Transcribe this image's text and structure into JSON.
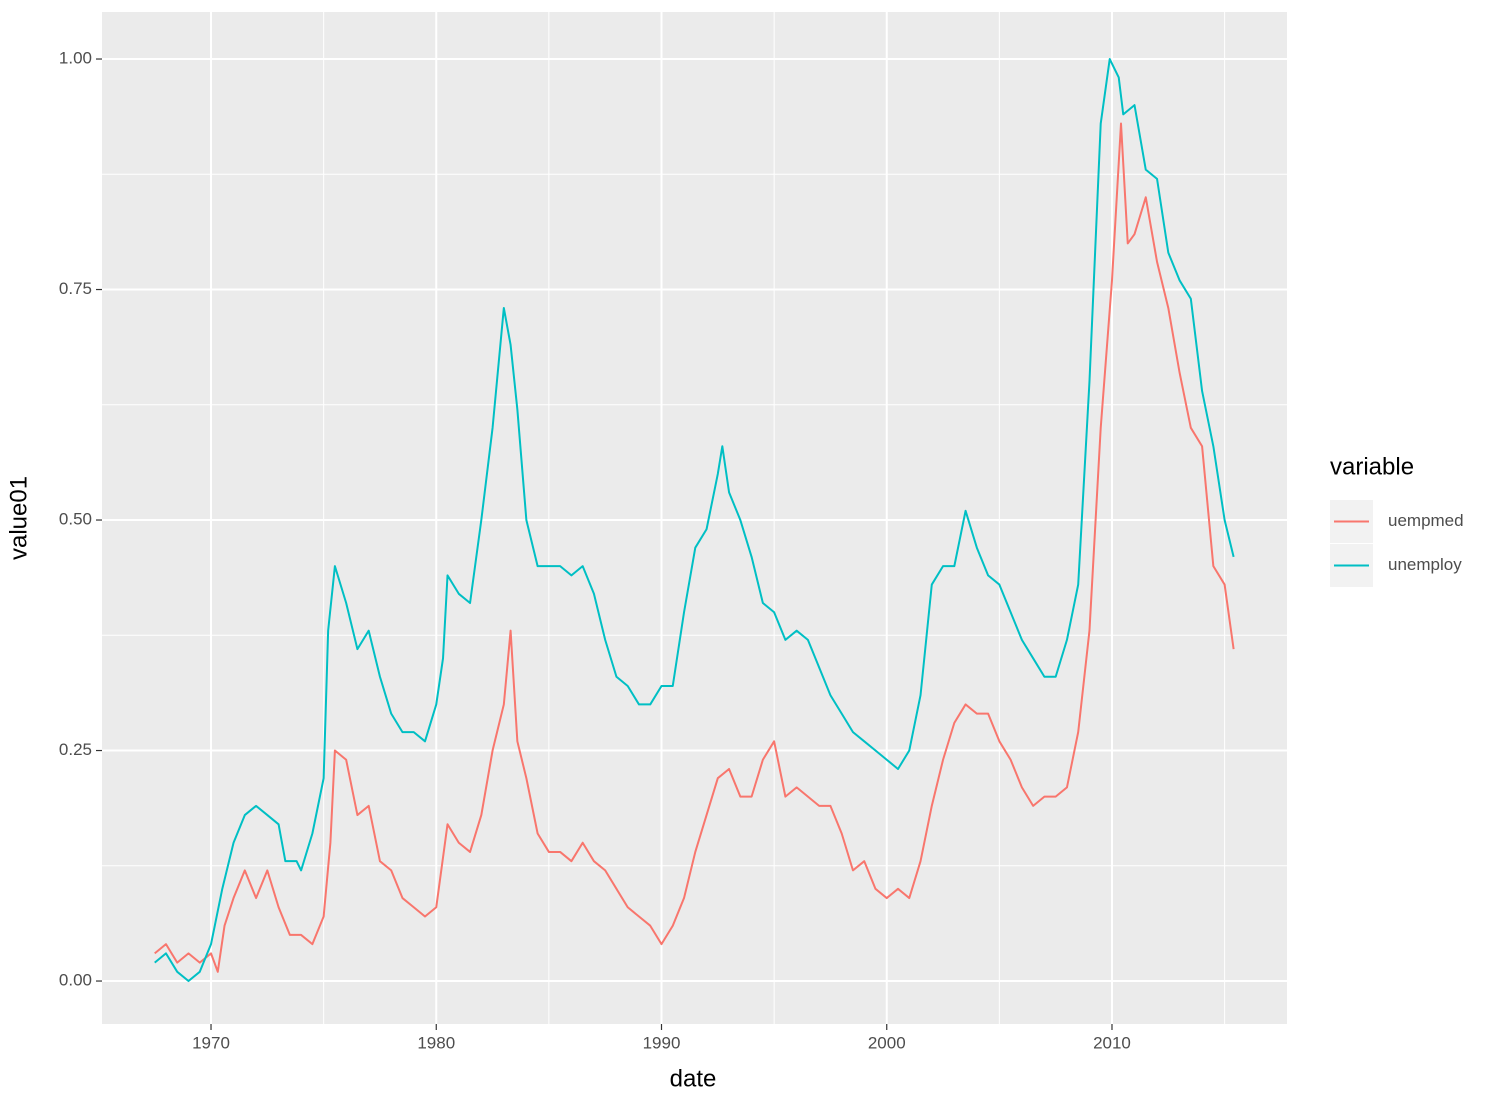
{
  "chart_data": {
    "type": "line",
    "x_label": "date",
    "y_label": "value01",
    "legend_title": "variable",
    "xlim": [
      1965.16,
      2017.77
    ],
    "xticks": [
      1970,
      1980,
      1990,
      2000,
      2010
    ],
    "ylim": [
      -0.0466,
      1.051
    ],
    "yticks": [
      {
        "value": 0,
        "label": "0.00"
      },
      {
        "value": 0.25,
        "label": "0.25"
      },
      {
        "value": 0.5,
        "label": "0.50"
      },
      {
        "value": 0.75,
        "label": "0.75"
      },
      {
        "value": 1,
        "label": "1.00"
      }
    ],
    "grid": true,
    "legend_position": "right",
    "series": [
      {
        "name": "uempmed",
        "color": "#f8766d",
        "x": [
          1967.5,
          1968.0,
          1968.5,
          1969.0,
          1969.5,
          1970.0,
          1970.3,
          1970.6,
          1971.0,
          1971.5,
          1972.0,
          1972.5,
          1973.0,
          1973.5,
          1974.0,
          1974.5,
          1975.0,
          1975.3,
          1975.5,
          1976.0,
          1976.5,
          1977.0,
          1977.5,
          1978.0,
          1978.5,
          1979.0,
          1979.5,
          1980.0,
          1980.5,
          1981.0,
          1981.5,
          1982.0,
          1982.5,
          1983.0,
          1983.3,
          1983.6,
          1984.0,
          1984.5,
          1985.0,
          1985.5,
          1986.0,
          1986.5,
          1987.0,
          1987.5,
          1988.0,
          1988.5,
          1989.0,
          1989.5,
          1990.0,
          1990.5,
          1991.0,
          1991.5,
          1992.0,
          1992.5,
          1993.0,
          1993.5,
          1994.0,
          1994.5,
          1995.0,
          1995.5,
          1996.0,
          1996.5,
          1997.0,
          1997.5,
          1998.0,
          1998.5,
          1999.0,
          1999.5,
          2000.0,
          2000.5,
          2001.0,
          2001.5,
          2002.0,
          2002.5,
          2003.0,
          2003.5,
          2004.0,
          2004.5,
          2005.0,
          2005.5,
          2006.0,
          2006.5,
          2007.0,
          2007.5,
          2008.0,
          2008.5,
          2009.0,
          2009.5,
          2010.0,
          2010.4,
          2010.7,
          2011.0,
          2011.5,
          2012.0,
          2012.5,
          2013.0,
          2013.5,
          2014.0,
          2014.5,
          2015.0,
          2015.4
        ],
        "values": [
          0.03,
          0.04,
          0.02,
          0.03,
          0.02,
          0.03,
          0.01,
          0.06,
          0.09,
          0.12,
          0.09,
          0.12,
          0.08,
          0.05,
          0.05,
          0.04,
          0.07,
          0.15,
          0.25,
          0.24,
          0.18,
          0.19,
          0.13,
          0.12,
          0.09,
          0.08,
          0.07,
          0.08,
          0.17,
          0.15,
          0.14,
          0.18,
          0.25,
          0.3,
          0.38,
          0.26,
          0.22,
          0.16,
          0.14,
          0.14,
          0.13,
          0.15,
          0.13,
          0.12,
          0.1,
          0.08,
          0.07,
          0.06,
          0.04,
          0.06,
          0.09,
          0.14,
          0.18,
          0.22,
          0.23,
          0.2,
          0.2,
          0.24,
          0.26,
          0.2,
          0.21,
          0.2,
          0.19,
          0.19,
          0.16,
          0.12,
          0.13,
          0.1,
          0.09,
          0.1,
          0.09,
          0.13,
          0.19,
          0.24,
          0.28,
          0.3,
          0.29,
          0.29,
          0.26,
          0.24,
          0.21,
          0.19,
          0.2,
          0.2,
          0.21,
          0.27,
          0.38,
          0.6,
          0.76,
          0.93,
          0.8,
          0.81,
          0.85,
          0.78,
          0.73,
          0.66,
          0.6,
          0.58,
          0.45,
          0.43,
          0.36
        ]
      },
      {
        "name": "unemploy",
        "color": "#00bfc4",
        "x": [
          1967.5,
          1968.0,
          1968.5,
          1969.0,
          1969.5,
          1970.0,
          1970.5,
          1971.0,
          1971.5,
          1972.0,
          1972.5,
          1973.0,
          1973.3,
          1973.8,
          1974.0,
          1974.5,
          1975.0,
          1975.2,
          1975.5,
          1976.0,
          1976.5,
          1977.0,
          1977.5,
          1978.0,
          1978.5,
          1979.0,
          1979.5,
          1980.0,
          1980.3,
          1980.5,
          1981.0,
          1981.5,
          1982.0,
          1982.5,
          1983.0,
          1983.3,
          1983.6,
          1984.0,
          1984.5,
          1985.0,
          1985.5,
          1986.0,
          1986.5,
          1987.0,
          1987.5,
          1988.0,
          1988.5,
          1989.0,
          1989.5,
          1990.0,
          1990.5,
          1991.0,
          1991.5,
          1992.0,
          1992.5,
          1992.7,
          1993.0,
          1993.5,
          1994.0,
          1994.5,
          1995.0,
          1995.5,
          1996.0,
          1996.5,
          1997.0,
          1997.5,
          1998.0,
          1998.5,
          1999.0,
          1999.5,
          2000.0,
          2000.5,
          2001.0,
          2001.5,
          2002.0,
          2002.5,
          2003.0,
          2003.5,
          2004.0,
          2004.5,
          2005.0,
          2005.5,
          2006.0,
          2006.5,
          2007.0,
          2007.5,
          2008.0,
          2008.5,
          2009.0,
          2009.5,
          2009.9,
          2010.3,
          2010.5,
          2011.0,
          2011.5,
          2012.0,
          2012.5,
          2013.0,
          2013.5,
          2014.0,
          2014.5,
          2015.0,
          2015.4
        ],
        "values": [
          0.02,
          0.03,
          0.01,
          0.0,
          0.01,
          0.04,
          0.1,
          0.15,
          0.18,
          0.19,
          0.18,
          0.17,
          0.13,
          0.13,
          0.12,
          0.16,
          0.22,
          0.38,
          0.45,
          0.41,
          0.36,
          0.38,
          0.33,
          0.29,
          0.27,
          0.27,
          0.26,
          0.3,
          0.35,
          0.44,
          0.42,
          0.41,
          0.5,
          0.6,
          0.73,
          0.69,
          0.62,
          0.5,
          0.45,
          0.45,
          0.45,
          0.44,
          0.45,
          0.42,
          0.37,
          0.33,
          0.32,
          0.3,
          0.3,
          0.32,
          0.32,
          0.4,
          0.47,
          0.49,
          0.55,
          0.58,
          0.53,
          0.5,
          0.46,
          0.41,
          0.4,
          0.37,
          0.38,
          0.37,
          0.34,
          0.31,
          0.29,
          0.27,
          0.26,
          0.25,
          0.24,
          0.23,
          0.25,
          0.31,
          0.43,
          0.45,
          0.45,
          0.51,
          0.47,
          0.44,
          0.43,
          0.4,
          0.37,
          0.35,
          0.33,
          0.33,
          0.37,
          0.43,
          0.65,
          0.93,
          1.0,
          0.98,
          0.94,
          0.95,
          0.88,
          0.87,
          0.79,
          0.76,
          0.74,
          0.64,
          0.58,
          0.5,
          0.46
        ]
      }
    ]
  }
}
